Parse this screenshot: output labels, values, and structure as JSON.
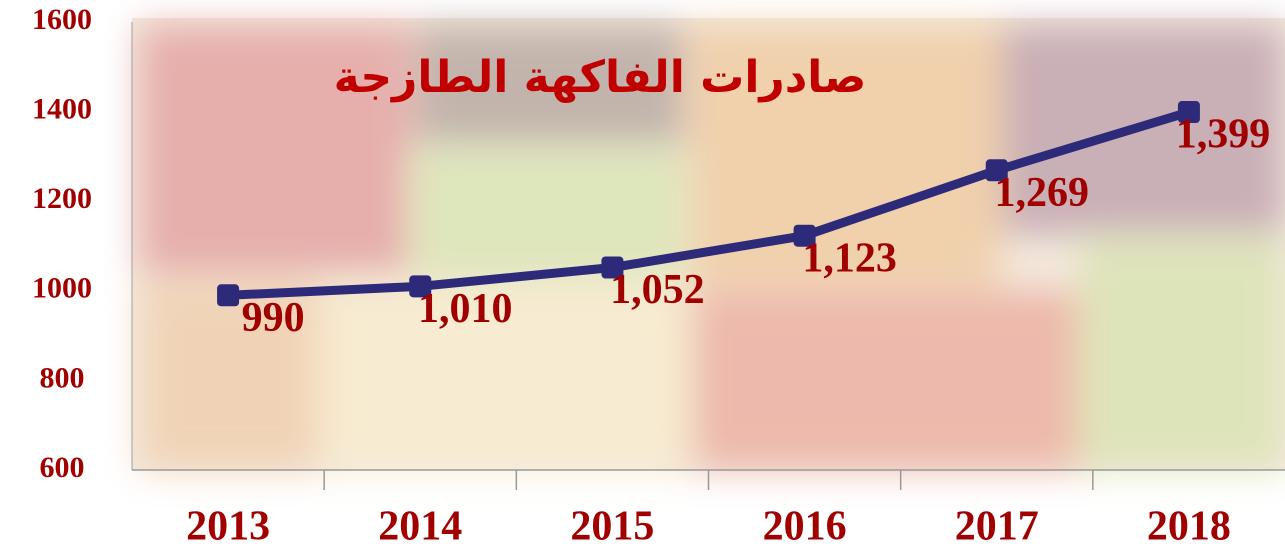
{
  "chart_data": {
    "type": "line",
    "title": "صادرات الفاكهة الطازجة",
    "categories": [
      "2013",
      "2014",
      "2015",
      "2016",
      "2017",
      "2018"
    ],
    "series": [
      {
        "color": "#2e2a7a",
        "values": [
          990,
          1010,
          1052,
          1123,
          1269,
          1399
        ],
        "value_labels": [
          "990",
          "1,010",
          "1,052",
          "1,123",
          "1,269",
          "1,399"
        ]
      }
    ],
    "ylim": [
      600,
      1600
    ],
    "yticks": [
      600,
      800,
      1000,
      1200,
      1400,
      1600
    ],
    "grid": false
  }
}
